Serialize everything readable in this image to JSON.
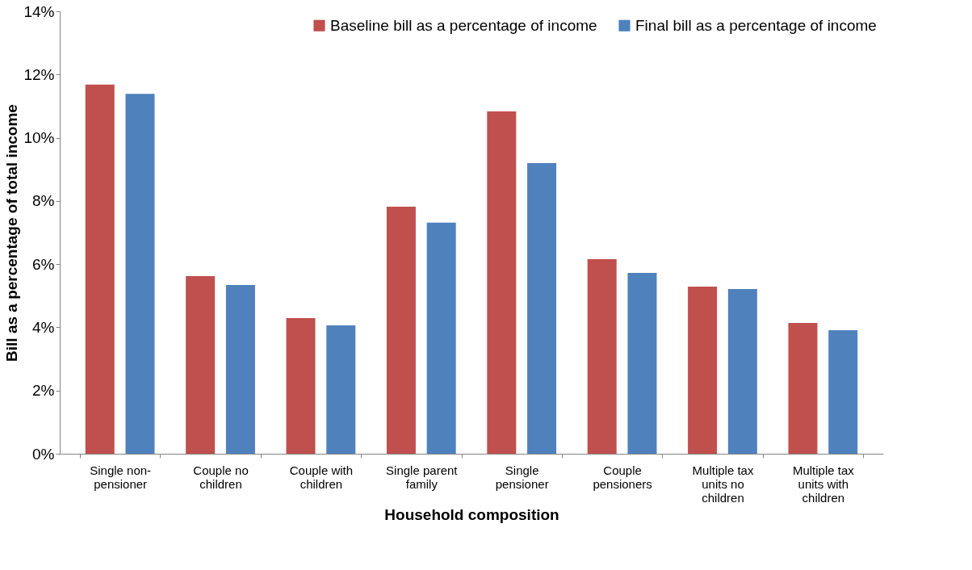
{
  "chart_data": {
    "type": "bar",
    "xlabel": "Household composition",
    "ylabel": "Bill as a percentage of total income",
    "categories": [
      "Single non-pensioner",
      "Couple no children",
      "Couple with children",
      "Single parent family",
      "Single pensioner",
      "Couple pensioners",
      "Multiple tax units no children",
      "Multiple tax units with children"
    ],
    "series": [
      {
        "name": "Baseline bill as a percentage of income",
        "color": "#c0504d",
        "values": [
          11.68,
          5.62,
          4.29,
          7.82,
          10.83,
          6.16,
          5.29,
          4.14
        ]
      },
      {
        "name": "Final bill as a percentage of income",
        "color": "#4f81bd",
        "values": [
          11.39,
          5.34,
          4.06,
          7.31,
          9.2,
          5.72,
          5.21,
          3.91
        ]
      }
    ],
    "ylim": [
      0,
      14
    ],
    "yticks": [
      {
        "value": 0,
        "label": "0%"
      },
      {
        "value": 2,
        "label": "2%"
      },
      {
        "value": 4,
        "label": "4%"
      },
      {
        "value": 6,
        "label": "6%"
      },
      {
        "value": 8,
        "label": "8%"
      },
      {
        "value": 10,
        "label": "10%"
      },
      {
        "value": 12,
        "label": "12%"
      },
      {
        "value": 14,
        "label": "14%"
      }
    ],
    "grid": false,
    "legend": "top right"
  }
}
